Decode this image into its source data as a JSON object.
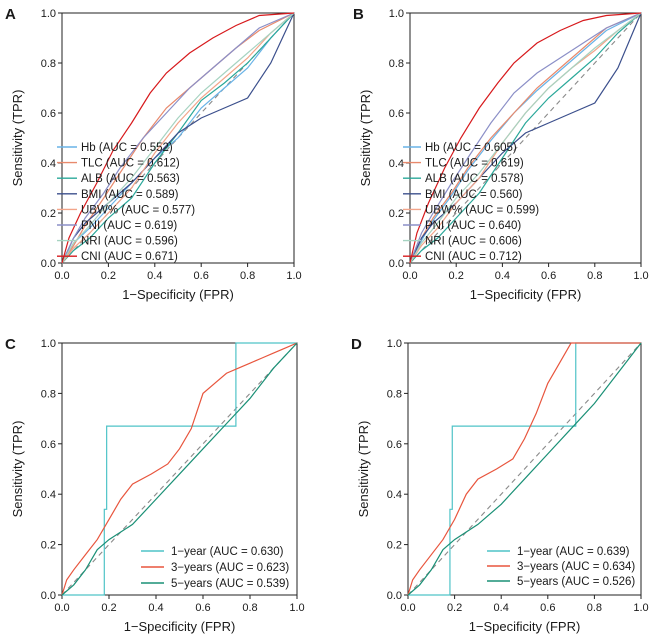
{
  "figure": {
    "axis_tick_labels": [
      "0.0",
      "0.2",
      "0.4",
      "0.6",
      "0.8",
      "1.0"
    ]
  },
  "chart_data": [
    {
      "panel": "A",
      "type": "line",
      "xlabel": "1−Specificity (FPR)",
      "ylabel": "Sensitivity (TPR)",
      "xlim": [
        0,
        1
      ],
      "ylim": [
        0,
        1
      ],
      "reference_line": "diagonal dashed",
      "legend_position": "bottom-right",
      "series": [
        {
          "name": "Hb",
          "legend": "Hb (AUC = 0.552)",
          "auc": 0.552,
          "color": "#69b3e7",
          "x": [
            0,
            0.05,
            0.12,
            0.2,
            0.3,
            0.4,
            0.5,
            0.6,
            0.7,
            0.8,
            0.9,
            1.0
          ],
          "y": [
            0,
            0.08,
            0.14,
            0.22,
            0.32,
            0.42,
            0.5,
            0.62,
            0.7,
            0.78,
            0.9,
            1.0
          ]
        },
        {
          "name": "TLC",
          "legend": "TLC (AUC = 0.612)",
          "auc": 0.612,
          "color": "#e8896c",
          "x": [
            0,
            0.05,
            0.1,
            0.18,
            0.25,
            0.35,
            0.45,
            0.55,
            0.65,
            0.75,
            0.85,
            1.0
          ],
          "y": [
            0,
            0.07,
            0.15,
            0.26,
            0.36,
            0.5,
            0.62,
            0.7,
            0.78,
            0.86,
            0.93,
            1.0
          ]
        },
        {
          "name": "ALB",
          "legend": "ALB (AUC = 0.563)",
          "auc": 0.563,
          "color": "#2aa89a",
          "x": [
            0,
            0.05,
            0.12,
            0.2,
            0.3,
            0.4,
            0.5,
            0.6,
            0.7,
            0.8,
            0.9,
            1.0
          ],
          "y": [
            0,
            0.05,
            0.1,
            0.18,
            0.26,
            0.4,
            0.52,
            0.65,
            0.72,
            0.8,
            0.9,
            1.0
          ]
        },
        {
          "name": "BMI",
          "legend": "BMI (AUC = 0.589)",
          "auc": 0.589,
          "color": "#3b4f8c",
          "x": [
            0,
            0.05,
            0.1,
            0.2,
            0.3,
            0.4,
            0.5,
            0.6,
            0.7,
            0.8,
            0.9,
            1.0
          ],
          "y": [
            0,
            0.1,
            0.16,
            0.24,
            0.32,
            0.42,
            0.52,
            0.58,
            0.62,
            0.66,
            0.8,
            1.0
          ]
        },
        {
          "name": "UBW%",
          "legend": "UBW% (AUC = 0.577)",
          "auc": 0.577,
          "color": "#f2a58a",
          "x": [
            0,
            0.05,
            0.12,
            0.2,
            0.3,
            0.4,
            0.5,
            0.6,
            0.7,
            0.8,
            0.9,
            1.0
          ],
          "y": [
            0,
            0.06,
            0.12,
            0.2,
            0.3,
            0.44,
            0.56,
            0.66,
            0.74,
            0.82,
            0.92,
            1.0
          ]
        },
        {
          "name": "PNI",
          "legend": "PNI (AUC = 0.619)",
          "auc": 0.619,
          "color": "#8b8fc7",
          "x": [
            0,
            0.05,
            0.1,
            0.18,
            0.25,
            0.35,
            0.45,
            0.55,
            0.65,
            0.75,
            0.85,
            1.0
          ],
          "y": [
            0,
            0.1,
            0.18,
            0.28,
            0.38,
            0.5,
            0.6,
            0.7,
            0.78,
            0.86,
            0.94,
            1.0
          ]
        },
        {
          "name": "NRI",
          "legend": "NRI (AUC = 0.596)",
          "auc": 0.596,
          "color": "#a6d3c1",
          "x": [
            0,
            0.05,
            0.12,
            0.2,
            0.3,
            0.4,
            0.5,
            0.6,
            0.7,
            0.8,
            0.9,
            1.0
          ],
          "y": [
            0,
            0.08,
            0.15,
            0.24,
            0.34,
            0.46,
            0.58,
            0.68,
            0.76,
            0.84,
            0.92,
            1.0
          ]
        },
        {
          "name": "CNI",
          "legend": "CNI (AUC = 0.671)",
          "auc": 0.671,
          "color": "#d7191c",
          "x": [
            0,
            0.03,
            0.08,
            0.15,
            0.22,
            0.3,
            0.38,
            0.45,
            0.55,
            0.65,
            0.75,
            0.85,
            1.0
          ],
          "y": [
            0,
            0.1,
            0.2,
            0.32,
            0.45,
            0.56,
            0.68,
            0.76,
            0.84,
            0.9,
            0.95,
            0.99,
            1.0
          ]
        }
      ]
    },
    {
      "panel": "B",
      "type": "line",
      "xlabel": "1−Specificity (FPR)",
      "ylabel": "Sensitivity (TPR)",
      "xlim": [
        0,
        1
      ],
      "ylim": [
        0,
        1
      ],
      "reference_line": "diagonal dashed",
      "legend_position": "bottom-right",
      "series": [
        {
          "name": "Hb",
          "legend": "Hb (AUC = 0.605)",
          "auc": 0.605,
          "color": "#69b3e7",
          "x": [
            0,
            0.05,
            0.1,
            0.18,
            0.25,
            0.35,
            0.45,
            0.55,
            0.65,
            0.75,
            0.85,
            1.0
          ],
          "y": [
            0,
            0.09,
            0.17,
            0.27,
            0.37,
            0.49,
            0.6,
            0.69,
            0.77,
            0.85,
            0.93,
            1.0
          ]
        },
        {
          "name": "TLC",
          "legend": "TLC (AUC = 0.619)",
          "auc": 0.619,
          "color": "#e8896c",
          "x": [
            0,
            0.05,
            0.1,
            0.18,
            0.25,
            0.35,
            0.45,
            0.55,
            0.65,
            0.75,
            0.85,
            1.0
          ],
          "y": [
            0,
            0.1,
            0.18,
            0.28,
            0.38,
            0.5,
            0.6,
            0.7,
            0.78,
            0.86,
            0.94,
            1.0
          ]
        },
        {
          "name": "ALB",
          "legend": "ALB (AUC = 0.578)",
          "auc": 0.578,
          "color": "#2aa89a",
          "x": [
            0,
            0.05,
            0.12,
            0.2,
            0.3,
            0.4,
            0.5,
            0.6,
            0.7,
            0.8,
            0.9,
            1.0
          ],
          "y": [
            0,
            0.05,
            0.1,
            0.18,
            0.28,
            0.42,
            0.56,
            0.66,
            0.74,
            0.82,
            0.92,
            1.0
          ]
        },
        {
          "name": "BMI",
          "legend": "BMI (AUC = 0.560)",
          "auc": 0.56,
          "color": "#3b4f8c",
          "x": [
            0,
            0.05,
            0.1,
            0.2,
            0.3,
            0.4,
            0.5,
            0.6,
            0.7,
            0.8,
            0.9,
            1.0
          ],
          "y": [
            0,
            0.1,
            0.16,
            0.24,
            0.34,
            0.44,
            0.52,
            0.56,
            0.6,
            0.64,
            0.78,
            1.0
          ]
        },
        {
          "name": "UBW%",
          "legend": "UBW% (AUC = 0.599)",
          "auc": 0.599,
          "color": "#f2a58a",
          "x": [
            0,
            0.05,
            0.12,
            0.2,
            0.3,
            0.4,
            0.5,
            0.6,
            0.7,
            0.8,
            0.9,
            1.0
          ],
          "y": [
            0,
            0.07,
            0.14,
            0.24,
            0.34,
            0.48,
            0.6,
            0.7,
            0.78,
            0.85,
            0.93,
            1.0
          ]
        },
        {
          "name": "PNI",
          "legend": "PNI (AUC = 0.640)",
          "auc": 0.64,
          "color": "#8b8fc7",
          "x": [
            0,
            0.05,
            0.1,
            0.18,
            0.25,
            0.35,
            0.45,
            0.55,
            0.65,
            0.75,
            0.85,
            1.0
          ],
          "y": [
            0,
            0.12,
            0.2,
            0.32,
            0.42,
            0.56,
            0.68,
            0.76,
            0.82,
            0.88,
            0.94,
            1.0
          ]
        },
        {
          "name": "NRI",
          "legend": "NRI (AUC = 0.606)",
          "auc": 0.606,
          "color": "#a6d3c1",
          "x": [
            0,
            0.05,
            0.12,
            0.2,
            0.3,
            0.4,
            0.5,
            0.6,
            0.7,
            0.8,
            0.9,
            1.0
          ],
          "y": [
            0,
            0.08,
            0.16,
            0.26,
            0.36,
            0.48,
            0.6,
            0.7,
            0.78,
            0.86,
            0.93,
            1.0
          ]
        },
        {
          "name": "CNI",
          "legend": "CNI (AUC = 0.712)",
          "auc": 0.712,
          "color": "#d7191c",
          "x": [
            0,
            0.03,
            0.08,
            0.15,
            0.22,
            0.3,
            0.38,
            0.45,
            0.55,
            0.65,
            0.75,
            0.85,
            1.0
          ],
          "y": [
            0,
            0.12,
            0.24,
            0.38,
            0.5,
            0.62,
            0.72,
            0.8,
            0.88,
            0.93,
            0.97,
            0.99,
            1.0
          ]
        }
      ]
    },
    {
      "panel": "C",
      "type": "line",
      "xlabel": "1−Specificity (FPR)",
      "ylabel": "Sensitivity (TPR)",
      "xlim": [
        0,
        1
      ],
      "ylim": [
        0,
        1
      ],
      "reference_line": "diagonal dashed",
      "legend_position": "bottom-right",
      "series": [
        {
          "name": "1-year",
          "legend": "1−year (AUC = 0.630)",
          "auc": 0.63,
          "color": "#4fc3c7",
          "x": [
            0,
            0.18,
            0.18,
            0.19,
            0.19,
            0.74,
            0.74,
            1.0
          ],
          "y": [
            0,
            0,
            0.34,
            0.34,
            0.67,
            0.67,
            1.0,
            1.0
          ]
        },
        {
          "name": "3-years",
          "legend": "3−years (AUC = 0.623)",
          "auc": 0.623,
          "color": "#e8553d",
          "x": [
            0,
            0.02,
            0.05,
            0.1,
            0.15,
            0.2,
            0.25,
            0.3,
            0.38,
            0.45,
            0.5,
            0.55,
            0.6,
            0.65,
            0.7,
            0.75,
            0.8,
            0.85,
            0.9,
            0.95,
            1.0
          ],
          "y": [
            0,
            0.06,
            0.1,
            0.16,
            0.22,
            0.3,
            0.38,
            0.44,
            0.48,
            0.52,
            0.58,
            0.66,
            0.8,
            0.84,
            0.88,
            0.9,
            0.92,
            0.94,
            0.96,
            0.98,
            1.0
          ]
        },
        {
          "name": "5-years",
          "legend": "5−years (AUC = 0.539)",
          "auc": 0.539,
          "color": "#1a9076",
          "x": [
            0,
            0.05,
            0.1,
            0.15,
            0.2,
            0.3,
            0.4,
            0.5,
            0.6,
            0.7,
            0.8,
            0.9,
            1.0
          ],
          "y": [
            0,
            0.04,
            0.1,
            0.18,
            0.22,
            0.28,
            0.38,
            0.48,
            0.58,
            0.68,
            0.78,
            0.9,
            1.0
          ]
        }
      ]
    },
    {
      "panel": "D",
      "type": "line",
      "xlabel": "1−Specificity (FPR)",
      "ylabel": "Sensitivity (TPR)",
      "xlim": [
        0,
        1
      ],
      "ylim": [
        0,
        1
      ],
      "reference_line": "diagonal dashed",
      "legend_position": "bottom-right",
      "series": [
        {
          "name": "1-year",
          "legend": "1−year (AUC = 0.639)",
          "auc": 0.639,
          "color": "#4fc3c7",
          "x": [
            0,
            0.18,
            0.18,
            0.19,
            0.19,
            0.72,
            0.72,
            1.0
          ],
          "y": [
            0,
            0,
            0.34,
            0.34,
            0.67,
            0.67,
            1.0,
            1.0
          ]
        },
        {
          "name": "3-years",
          "legend": "3−years (AUC = 0.634)",
          "auc": 0.634,
          "color": "#e8553d",
          "x": [
            0,
            0.02,
            0.05,
            0.1,
            0.15,
            0.2,
            0.25,
            0.3,
            0.38,
            0.45,
            0.5,
            0.55,
            0.6,
            0.65,
            0.7,
            0.75,
            0.8,
            0.85,
            0.9,
            0.95,
            1.0
          ],
          "y": [
            0,
            0.06,
            0.1,
            0.16,
            0.22,
            0.3,
            0.4,
            0.46,
            0.5,
            0.54,
            0.62,
            0.72,
            0.84,
            0.92,
            1.0,
            1.0,
            1.0,
            1.0,
            1.0,
            1.0,
            1.0
          ]
        },
        {
          "name": "5-years",
          "legend": "5−years (AUC = 0.526)",
          "auc": 0.526,
          "color": "#1a9076",
          "x": [
            0,
            0.05,
            0.1,
            0.15,
            0.2,
            0.3,
            0.4,
            0.5,
            0.6,
            0.7,
            0.8,
            0.9,
            1.0
          ],
          "y": [
            0,
            0.04,
            0.1,
            0.18,
            0.22,
            0.28,
            0.36,
            0.46,
            0.56,
            0.66,
            0.76,
            0.88,
            1.0
          ]
        }
      ]
    }
  ]
}
